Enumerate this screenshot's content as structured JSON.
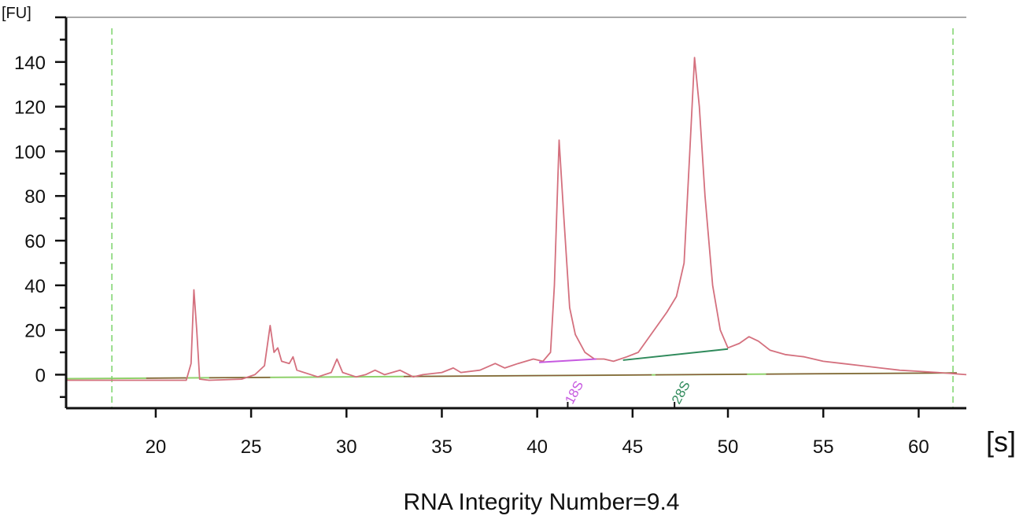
{
  "chart_data": {
    "type": "line",
    "title": "",
    "xlabel": "[s]",
    "ylabel": "[FU]",
    "xlim": [
      15.3,
      62.5
    ],
    "ylim": [
      -15,
      160
    ],
    "xticks": [
      20,
      25,
      30,
      35,
      40,
      45,
      50,
      55,
      60
    ],
    "yticks": [
      0,
      20,
      40,
      60,
      80,
      100,
      120,
      140
    ],
    "grid": false,
    "colors": {
      "trace": "#d4707e",
      "axis": "#111111",
      "baseline": "#8fd16b",
      "marker_line": "#7cd36a",
      "label_18s": "#c65ae0",
      "label_28s": "#2f8a5b",
      "segment_brown": "#8a5a3a",
      "tick_mark_dark": "#111111"
    },
    "boundary_markers_x": [
      17.7,
      61.8
    ],
    "series": [
      {
        "points": [
          [
            15.3,
            -2.5
          ],
          [
            21.6,
            -2.5
          ],
          [
            21.85,
            5
          ],
          [
            22.0,
            38
          ],
          [
            22.15,
            20
          ],
          [
            22.3,
            -2
          ],
          [
            22.8,
            -2.5
          ],
          [
            24.5,
            -2
          ],
          [
            25.2,
            0
          ],
          [
            25.7,
            4
          ],
          [
            26.0,
            22
          ],
          [
            26.2,
            10
          ],
          [
            26.4,
            12
          ],
          [
            26.6,
            6
          ],
          [
            27.0,
            5
          ],
          [
            27.2,
            8
          ],
          [
            27.4,
            2
          ],
          [
            28.5,
            -1
          ],
          [
            29.2,
            1
          ],
          [
            29.5,
            7
          ],
          [
            29.8,
            1
          ],
          [
            30.5,
            -1
          ],
          [
            31.0,
            0
          ],
          [
            31.5,
            2
          ],
          [
            32.0,
            0
          ],
          [
            32.8,
            2
          ],
          [
            33.5,
            -1
          ],
          [
            34.0,
            0
          ],
          [
            35.0,
            1
          ],
          [
            35.6,
            3
          ],
          [
            36.0,
            1
          ],
          [
            37.0,
            2
          ],
          [
            37.8,
            5
          ],
          [
            38.3,
            3
          ],
          [
            39.0,
            5
          ],
          [
            39.8,
            7
          ],
          [
            40.3,
            6
          ],
          [
            40.7,
            10
          ],
          [
            40.9,
            40
          ],
          [
            41.15,
            105
          ],
          [
            41.4,
            70
          ],
          [
            41.7,
            30
          ],
          [
            42.0,
            18
          ],
          [
            42.5,
            10
          ],
          [
            43.0,
            7
          ],
          [
            43.5,
            7
          ],
          [
            44.0,
            6
          ],
          [
            44.7,
            8
          ],
          [
            45.3,
            10
          ],
          [
            45.8,
            16
          ],
          [
            46.3,
            22
          ],
          [
            46.8,
            28
          ],
          [
            47.3,
            35
          ],
          [
            47.7,
            50
          ],
          [
            48.0,
            100
          ],
          [
            48.25,
            142
          ],
          [
            48.5,
            120
          ],
          [
            48.8,
            80
          ],
          [
            49.2,
            40
          ],
          [
            49.6,
            20
          ],
          [
            50.0,
            12
          ],
          [
            50.6,
            14
          ],
          [
            51.1,
            17
          ],
          [
            51.6,
            15
          ],
          [
            52.2,
            11
          ],
          [
            53.0,
            9
          ],
          [
            54.0,
            8
          ],
          [
            55.0,
            6
          ],
          [
            56.0,
            5
          ],
          [
            57.0,
            4
          ],
          [
            58.0,
            3
          ],
          [
            59.0,
            2
          ],
          [
            60.0,
            1.5
          ],
          [
            61.0,
            1
          ],
          [
            62.5,
            0
          ]
        ]
      }
    ],
    "peak_markers": [
      {
        "label": "18S",
        "x": 41.6,
        "baseline_segment": [
          [
            40.1,
            5.5
          ],
          [
            43.1,
            7
          ]
        ]
      },
      {
        "label": "28S",
        "x": 47.2,
        "baseline_segment": [
          [
            44.5,
            6.5
          ],
          [
            50.0,
            11.5
          ]
        ]
      }
    ]
  },
  "annotation": {
    "text": "RNA Integrity Number=9.4"
  }
}
